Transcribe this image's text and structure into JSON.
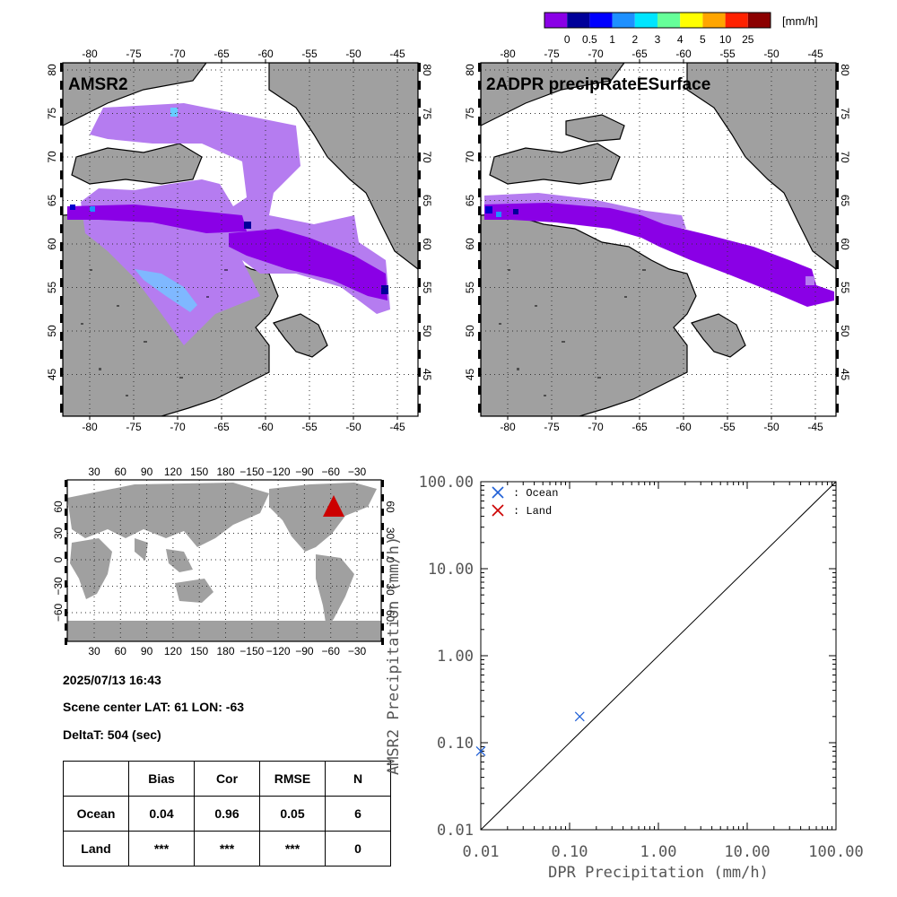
{
  "colorbar": {
    "unit": "[mm/h]",
    "ticks": [
      "0",
      "0.5",
      "1",
      "2",
      "3",
      "4",
      "5",
      "10",
      "25"
    ],
    "colors": [
      "#8a00e6",
      "#000099",
      "#0000ff",
      "#1e90ff",
      "#00e5ff",
      "#66ff99",
      "#ffff00",
      "#ffa500",
      "#ff2200",
      "#8b0000"
    ]
  },
  "maps": {
    "left_title": "AMSR2",
    "right_title": "2ADPR precipRateESurface",
    "lon_ticks": [
      "-80",
      "-75",
      "-70",
      "-65",
      "-60",
      "-55",
      "-50",
      "-45"
    ],
    "lat_ticks": [
      "80",
      "75",
      "70",
      "65",
      "60",
      "55",
      "50",
      "45"
    ],
    "land_color": "#a0a0a0",
    "precip_light_color": "#b57cf0",
    "precip_color": "#8a00e6"
  },
  "globe": {
    "lon_ticks": [
      "30",
      "60",
      "90",
      "120",
      "150",
      "180",
      "−150",
      "−120",
      "−90",
      "−60",
      "−30"
    ],
    "lat_ticks": [
      "60",
      "30",
      "0",
      "−30",
      "−60"
    ],
    "marker_color": "#cc0000"
  },
  "info": {
    "datetime": "2025/07/13 16:43",
    "scene_center": "Scene center LAT: 61   LON: -63",
    "deltat": "DeltaT:  504 (sec)"
  },
  "stats_table": {
    "headers": [
      "",
      "Bias",
      "Cor",
      "RMSE",
      "N"
    ],
    "rows": [
      [
        "Ocean",
        "0.04",
        "0.96",
        "0.05",
        "6"
      ],
      [
        "Land",
        "***",
        "***",
        "***",
        "0"
      ]
    ]
  },
  "chart_data": {
    "type": "scatter",
    "xlabel": "DPR Precipitation (mm/h)",
    "ylabel": "AMSR2 Precipitation (mm/h)",
    "xscale": "log",
    "yscale": "log",
    "xlim": [
      0.01,
      100
    ],
    "ylim": [
      0.01,
      100
    ],
    "x_tick_labels": [
      "0.01",
      "0.10",
      "1.00",
      "10.00",
      "100.00"
    ],
    "y_tick_labels": [
      "0.01",
      "0.10",
      "1.00",
      "10.00",
      "100.00"
    ],
    "legend_position": "top-left",
    "series": [
      {
        "name": ": Ocean",
        "color": "#1f5fd6",
        "x": [
          0.01,
          0.13
        ],
        "y": [
          0.08,
          0.2
        ]
      },
      {
        "name": ": Land",
        "color": "#cc0000",
        "x": [],
        "y": []
      }
    ],
    "reference_line": "1:1"
  }
}
